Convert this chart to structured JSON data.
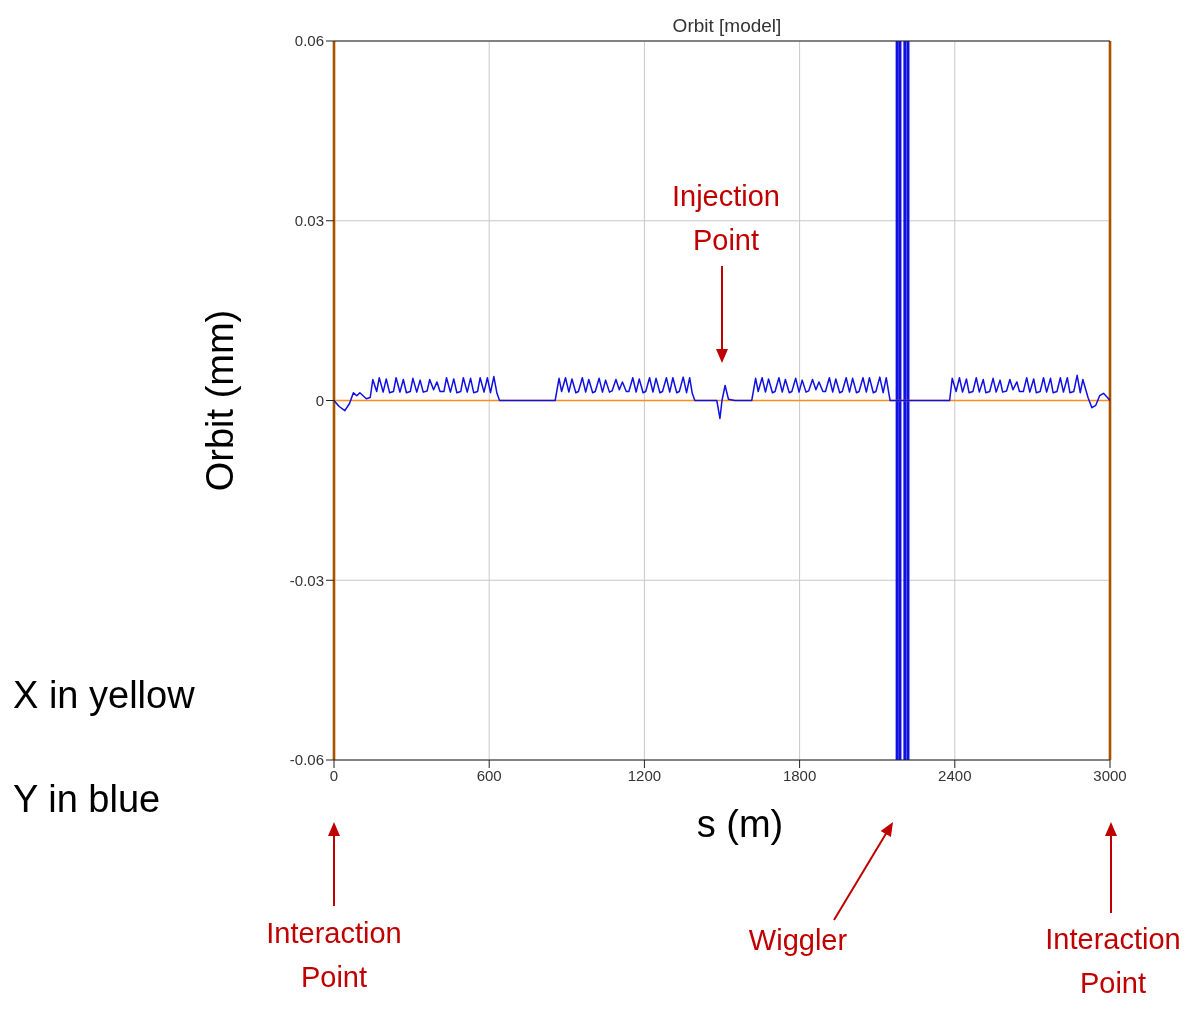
{
  "chart_data": {
    "type": "line",
    "title": "Orbit [model]",
    "xlabel": "s (m)",
    "ylabel": "Orbit  (mm)",
    "xlim": [
      0,
      3000
    ],
    "xticks": [
      0,
      600,
      1200,
      1800,
      2400,
      3000
    ],
    "ylim": [
      -0.06,
      0.06
    ],
    "yticks": [
      -0.06,
      -0.03,
      0,
      0.03,
      0.06
    ],
    "grid": true,
    "series": [
      {
        "color": "#ff8c1a",
        "x": [
          0,
          3000
        ],
        "values": [
          0,
          0
        ]
      },
      {
        "color": "#1010e0",
        "x": [
          0,
          20,
          42,
          60,
          75,
          88,
          100,
          125,
          140,
          150,
          165,
          175,
          190,
          202,
          215,
          230,
          240,
          255,
          268,
          280,
          295,
          305,
          320,
          333,
          345,
          360,
          370,
          385,
          398,
          410,
          425,
          435,
          450,
          463,
          475,
          490,
          500,
          515,
          528,
          540,
          555,
          565,
          580,
          593,
          605,
          618,
          630,
          640,
          855,
          870,
          880,
          895,
          908,
          920,
          935,
          945,
          960,
          973,
          985,
          1000,
          1010,
          1025,
          1038,
          1050,
          1065,
          1075,
          1090,
          1103,
          1115,
          1130,
          1140,
          1155,
          1168,
          1180,
          1195,
          1205,
          1220,
          1233,
          1245,
          1260,
          1270,
          1285,
          1298,
          1310,
          1325,
          1335,
          1350,
          1363,
          1375,
          1385,
          1395,
          1480,
          1492,
          1500,
          1512,
          1525,
          1550,
          1615,
          1630,
          1640,
          1655,
          1668,
          1680,
          1695,
          1705,
          1720,
          1733,
          1745,
          1760,
          1770,
          1785,
          1798,
          1810,
          1825,
          1835,
          1850,
          1863,
          1875,
          1890,
          1900,
          1915,
          1928,
          1940,
          1955,
          1965,
          1980,
          1993,
          2005,
          2020,
          2030,
          2045,
          2058,
          2070,
          2085,
          2095,
          2110,
          2123,
          2135,
          2145,
          2150,
          2360,
          2365,
          2380,
          2390,
          2405,
          2418,
          2430,
          2445,
          2455,
          2470,
          2483,
          2495,
          2510,
          2520,
          2535,
          2548,
          2560,
          2575,
          2585,
          2600,
          2613,
          2625,
          2640,
          2650,
          2665,
          2678,
          2690,
          2705,
          2715,
          2730,
          2743,
          2755,
          2770,
          2780,
          2795,
          2808,
          2820,
          2835,
          2845,
          2860,
          2873,
          2885,
          2895,
          2915,
          2930,
          2945,
          2960,
          2975,
          2990,
          3000
        ],
        "values": [
          0,
          -0.001,
          -0.0017,
          -0.0005,
          0.0013,
          0.0008,
          0.0013,
          0.0003,
          0.0005,
          0.0035,
          0.0015,
          0.0038,
          0.0014,
          0.0036,
          0.0013,
          0.0015,
          0.0038,
          0.0014,
          0.0035,
          0.0013,
          0.0015,
          0.0037,
          0.0014,
          0.0034,
          0.0014,
          0.0016,
          0.0035,
          0.0018,
          0.0031,
          0.0015,
          0.0015,
          0.0038,
          0.0014,
          0.0036,
          0.0013,
          0.0015,
          0.0038,
          0.0014,
          0.0037,
          0.0013,
          0.0015,
          0.0038,
          0.0014,
          0.0038,
          0.0013,
          0.004,
          0.0012,
          0,
          0,
          0.0037,
          0.0015,
          0.0038,
          0.0014,
          0.0036,
          0.0013,
          0.0015,
          0.0038,
          0.0014,
          0.0035,
          0.0013,
          0.0015,
          0.0037,
          0.0014,
          0.0034,
          0.0014,
          0.0016,
          0.0035,
          0.0018,
          0.0031,
          0.0015,
          0.0015,
          0.0038,
          0.0014,
          0.0036,
          0.0013,
          0.0015,
          0.0038,
          0.0014,
          0.0037,
          0.0013,
          0.0015,
          0.0038,
          0.0014,
          0.0038,
          0.0013,
          0.0015,
          0.0039,
          0.0013,
          0.0038,
          0.0012,
          0,
          0,
          -0.003,
          0,
          0.0025,
          0.0002,
          0,
          0,
          0.0037,
          0.0015,
          0.0038,
          0.0014,
          0.0036,
          0.0013,
          0.0015,
          0.0038,
          0.0014,
          0.0035,
          0.0013,
          0.0015,
          0.0037,
          0.0014,
          0.0034,
          0.0014,
          0.0016,
          0.0035,
          0.0018,
          0.0031,
          0.0015,
          0.0015,
          0.0038,
          0.0014,
          0.0036,
          0.0013,
          0.0015,
          0.0038,
          0.0014,
          0.0037,
          0.0013,
          0.0015,
          0.0038,
          0.0014,
          0.0038,
          0.0013,
          0.0015,
          0.0039,
          0.0013,
          0.0038,
          0.0012,
          0,
          0,
          0,
          0,
          0.0037,
          0.0015,
          0.0038,
          0.0014,
          0.0036,
          0.0013,
          0.0015,
          0.0038,
          0.0014,
          0.0035,
          0.0013,
          0.0015,
          0.0037,
          0.0014,
          0.0034,
          0.0014,
          0.0016,
          0.0035,
          0.0018,
          0.0031,
          0.0015,
          0.0015,
          0.0038,
          0.0014,
          0.0036,
          0.0013,
          0.0015,
          0.0038,
          0.0014,
          0.0037,
          0.0013,
          0.0015,
          0.0038,
          0.0014,
          0.0038,
          0.0013,
          0.0015,
          0.0042,
          0.0013,
          0.0035,
          0.0005,
          -0.0012,
          -0.0008,
          0.0008,
          0.0012,
          0.0005,
          0
        ]
      }
    ],
    "ref_lines": [
      {
        "axis": "x",
        "value": 0,
        "color": "#ff8c1a"
      },
      {
        "axis": "x",
        "value": 3000,
        "color": "#ff8c1a"
      },
      {
        "axis": "x",
        "value": 2177,
        "color": "#1010e0"
      },
      {
        "axis": "x",
        "value": 2188,
        "color": "#1010e0"
      },
      {
        "axis": "x",
        "value": 2207,
        "color": "#1010e0"
      },
      {
        "axis": "x",
        "value": 2219,
        "color": "#1010e0"
      }
    ],
    "annotations": [
      "Injection Point",
      "Interaction Point",
      "Wiggler",
      "Interaction Point",
      "X in yellow",
      "Y in blue"
    ]
  }
}
